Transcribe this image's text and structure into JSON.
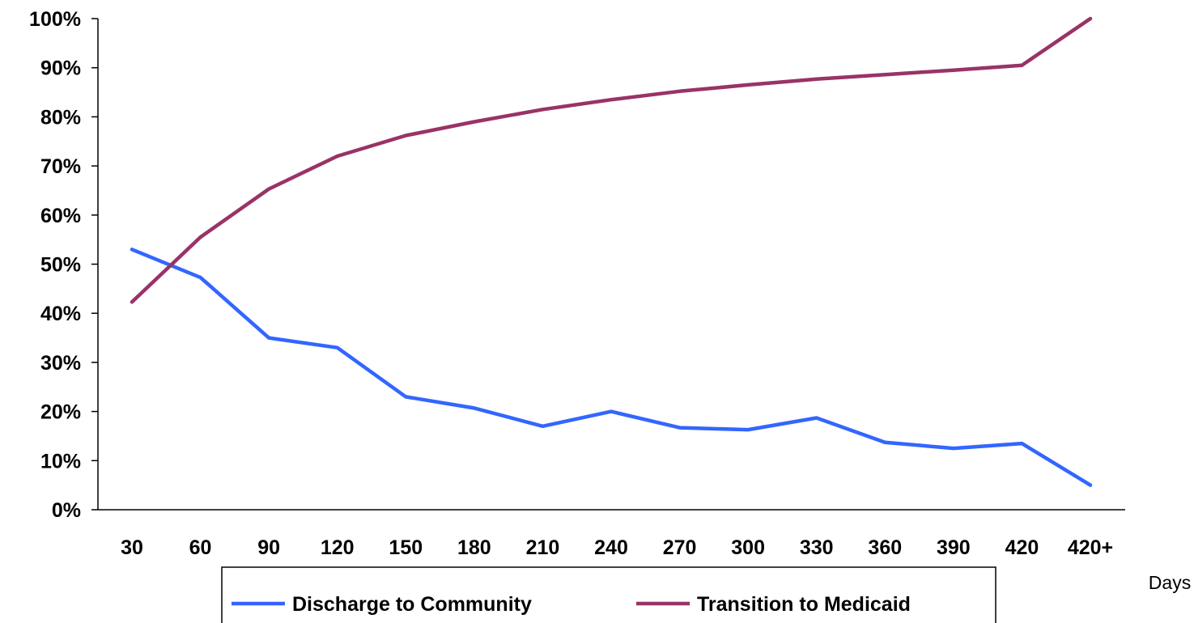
{
  "chart_data": {
    "type": "line",
    "xlabel": "Days",
    "ylabel": "",
    "categories": [
      "30",
      "60",
      "90",
      "120",
      "150",
      "180",
      "210",
      "240",
      "270",
      "300",
      "330",
      "360",
      "390",
      "420",
      "420+"
    ],
    "ylim": [
      0,
      100
    ],
    "yticks": [
      "0%",
      "10%",
      "20%",
      "30%",
      "40%",
      "50%",
      "60%",
      "70%",
      "80%",
      "90%",
      "100%"
    ],
    "grid": false,
    "legend_position": "bottom",
    "series": [
      {
        "name": "Discharge to Community",
        "color": "#3366FF",
        "values": [
          53,
          47.3,
          35,
          33,
          23,
          20.7,
          17,
          20,
          16.7,
          16.3,
          18.7,
          13.7,
          12.5,
          13.5,
          5
        ]
      },
      {
        "name": "Transition to Medicaid",
        "color": "#993366",
        "values": [
          42.3,
          55.5,
          65.3,
          72,
          76.2,
          79,
          81.5,
          83.5,
          85.2,
          86.5,
          87.7,
          88.6,
          89.5,
          90.5,
          100
        ]
      }
    ]
  }
}
